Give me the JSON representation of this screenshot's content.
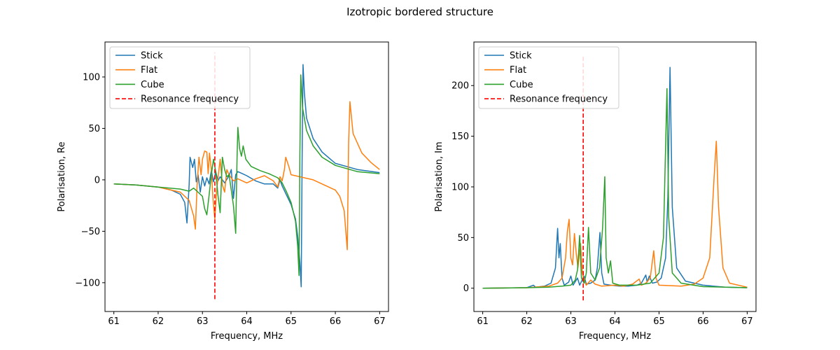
{
  "figure": {
    "title": "Izotropic bordered structure"
  },
  "chart_data": [
    {
      "type": "line",
      "xlabel": "Frequency, MHz",
      "ylabel": "Polarisation, Re",
      "xlim": [
        60.8,
        67.2
      ],
      "ylim": [
        -128,
        134
      ],
      "xticks": [
        61,
        62,
        63,
        64,
        65,
        66,
        67
      ],
      "yticks": [
        -100,
        -50,
        0,
        50,
        100
      ],
      "legend_position": "top-left",
      "legend": [
        "Stick",
        "Flat",
        "Cube",
        "Resonance frequency"
      ],
      "resonance": {
        "name": "Resonance frequency",
        "x": 63.28,
        "y_range": [
          -116,
          124
        ],
        "color": "#ff0000",
        "style": "dashed"
      },
      "series": [
        {
          "name": "Stick",
          "color": "#1f77b4",
          "points": [
            [
              61,
              -4
            ],
            [
              61.5,
              -5
            ],
            [
              62,
              -7
            ],
            [
              62.3,
              -10
            ],
            [
              62.5,
              -14
            ],
            [
              62.6,
              -22
            ],
            [
              62.65,
              -42
            ],
            [
              62.7,
              -5
            ],
            [
              62.72,
              22
            ],
            [
              62.78,
              12
            ],
            [
              62.82,
              20
            ],
            [
              62.86,
              -2
            ],
            [
              62.9,
              5
            ],
            [
              62.95,
              -12
            ],
            [
              63.0,
              3
            ],
            [
              63.05,
              -6
            ],
            [
              63.1,
              2
            ],
            [
              63.15,
              -4
            ],
            [
              63.2,
              9
            ],
            [
              63.25,
              -2
            ],
            [
              63.3,
              8
            ],
            [
              63.35,
              -1
            ],
            [
              63.4,
              3
            ],
            [
              63.5,
              -3
            ],
            [
              63.6,
              4
            ],
            [
              63.65,
              10
            ],
            [
              63.7,
              -18
            ],
            [
              63.75,
              5
            ],
            [
              63.8,
              8
            ],
            [
              63.9,
              6
            ],
            [
              64.0,
              4
            ],
            [
              64.2,
              -1
            ],
            [
              64.4,
              -4
            ],
            [
              64.6,
              -4
            ],
            [
              64.7,
              -8
            ],
            [
              64.75,
              0
            ],
            [
              64.8,
              -6
            ],
            [
              64.9,
              -15
            ],
            [
              65.0,
              -24
            ],
            [
              65.1,
              -38
            ],
            [
              65.15,
              -55
            ],
            [
              65.2,
              -80
            ],
            [
              65.23,
              -104
            ],
            [
              65.25,
              20
            ],
            [
              65.27,
              112
            ],
            [
              65.3,
              85
            ],
            [
              65.35,
              60
            ],
            [
              65.5,
              40
            ],
            [
              65.7,
              27
            ],
            [
              66.0,
              16
            ],
            [
              66.5,
              10
            ],
            [
              67,
              7
            ]
          ]
        },
        {
          "name": "Flat",
          "color": "#ff7f0e",
          "points": [
            [
              61,
              -4
            ],
            [
              61.5,
              -5
            ],
            [
              62,
              -7
            ],
            [
              62.3,
              -10
            ],
            [
              62.5,
              -12
            ],
            [
              62.7,
              -20
            ],
            [
              62.8,
              -35
            ],
            [
              62.84,
              -48
            ],
            [
              62.88,
              -5
            ],
            [
              62.92,
              22
            ],
            [
              62.97,
              5
            ],
            [
              63.0,
              20
            ],
            [
              63.05,
              28
            ],
            [
              63.1,
              27
            ],
            [
              63.13,
              6
            ],
            [
              63.16,
              26
            ],
            [
              63.2,
              10
            ],
            [
              63.24,
              -20
            ],
            [
              63.28,
              -38
            ],
            [
              63.32,
              -10
            ],
            [
              63.36,
              5
            ],
            [
              63.4,
              20
            ],
            [
              63.45,
              -5
            ],
            [
              63.5,
              -12
            ],
            [
              63.55,
              10
            ],
            [
              63.6,
              5
            ],
            [
              63.7,
              -1
            ],
            [
              63.8,
              1
            ],
            [
              64.0,
              -3
            ],
            [
              64.2,
              1
            ],
            [
              64.4,
              4
            ],
            [
              64.6,
              -1
            ],
            [
              64.7,
              -7
            ],
            [
              64.75,
              3
            ],
            [
              64.8,
              -1
            ],
            [
              64.85,
              10
            ],
            [
              64.88,
              22
            ],
            [
              64.95,
              13
            ],
            [
              65.0,
              5
            ],
            [
              65.5,
              0
            ],
            [
              66.0,
              -10
            ],
            [
              66.1,
              -16
            ],
            [
              66.2,
              -30
            ],
            [
              66.27,
              -68
            ],
            [
              66.3,
              35
            ],
            [
              66.33,
              76
            ],
            [
              66.4,
              45
            ],
            [
              66.6,
              26
            ],
            [
              66.8,
              17
            ],
            [
              67,
              10
            ]
          ]
        },
        {
          "name": "Cube",
          "color": "#2ca02c",
          "points": [
            [
              61,
              -4
            ],
            [
              61.5,
              -5
            ],
            [
              62,
              -7
            ],
            [
              62.5,
              -9
            ],
            [
              62.7,
              -11
            ],
            [
              62.8,
              -8
            ],
            [
              62.9,
              -12
            ],
            [
              63.0,
              -16
            ],
            [
              63.05,
              -28
            ],
            [
              63.1,
              -34
            ],
            [
              63.15,
              -15
            ],
            [
              63.2,
              5
            ],
            [
              63.25,
              20
            ],
            [
              63.3,
              8
            ],
            [
              63.35,
              -15
            ],
            [
              63.4,
              -32
            ],
            [
              63.45,
              22
            ],
            [
              63.5,
              10
            ],
            [
              63.55,
              3
            ],
            [
              63.6,
              5
            ],
            [
              63.65,
              -10
            ],
            [
              63.7,
              -25
            ],
            [
              63.75,
              -52
            ],
            [
              63.78,
              20
            ],
            [
              63.8,
              51
            ],
            [
              63.84,
              30
            ],
            [
              63.88,
              23
            ],
            [
              63.92,
              33
            ],
            [
              63.98,
              20
            ],
            [
              64.1,
              13
            ],
            [
              64.3,
              9
            ],
            [
              64.5,
              6
            ],
            [
              64.7,
              2
            ],
            [
              64.8,
              -3
            ],
            [
              64.9,
              -12
            ],
            [
              65.0,
              -22
            ],
            [
              65.1,
              -40
            ],
            [
              65.15,
              -65
            ],
            [
              65.18,
              -93
            ],
            [
              65.2,
              25
            ],
            [
              65.22,
              102
            ],
            [
              65.26,
              70
            ],
            [
              65.35,
              48
            ],
            [
              65.5,
              33
            ],
            [
              65.7,
              22
            ],
            [
              66.0,
              14
            ],
            [
              66.5,
              8
            ],
            [
              67,
              6
            ]
          ]
        }
      ]
    },
    {
      "type": "line",
      "xlabel": "Frequency, MHz",
      "ylabel": "Polarisation, Im",
      "xlim": [
        60.8,
        67.2
      ],
      "ylim": [
        -23,
        243
      ],
      "xticks": [
        61,
        62,
        63,
        64,
        65,
        66,
        67
      ],
      "yticks": [
        0,
        50,
        100,
        150,
        200
      ],
      "legend_position": "top-left",
      "legend": [
        "Stick",
        "Flat",
        "Cube",
        "Resonance frequency"
      ],
      "resonance": {
        "name": "Resonance frequency",
        "x": 63.28,
        "y_range": [
          -12,
          230
        ],
        "color": "#ff0000",
        "style": "dashed"
      },
      "series": [
        {
          "name": "Stick",
          "color": "#1f77b4",
          "points": [
            [
              61,
              0
            ],
            [
              62,
              0.5
            ],
            [
              62.15,
              3
            ],
            [
              62.2,
              1
            ],
            [
              62.4,
              2
            ],
            [
              62.55,
              5
            ],
            [
              62.65,
              20
            ],
            [
              62.7,
              59
            ],
            [
              62.73,
              30
            ],
            [
              62.76,
              44
            ],
            [
              62.8,
              10
            ],
            [
              62.85,
              3
            ],
            [
              62.95,
              6
            ],
            [
              63.0,
              12
            ],
            [
              63.05,
              3
            ],
            [
              63.15,
              10
            ],
            [
              63.2,
              3
            ],
            [
              63.3,
              12
            ],
            [
              63.35,
              4
            ],
            [
              63.45,
              5
            ],
            [
              63.55,
              8
            ],
            [
              63.6,
              20
            ],
            [
              63.66,
              55
            ],
            [
              63.7,
              15
            ],
            [
              63.75,
              4
            ],
            [
              63.9,
              3
            ],
            [
              64.1,
              2
            ],
            [
              64.3,
              2
            ],
            [
              64.5,
              3
            ],
            [
              64.6,
              5
            ],
            [
              64.7,
              13
            ],
            [
              64.73,
              6
            ],
            [
              64.78,
              12
            ],
            [
              64.85,
              5
            ],
            [
              64.95,
              6
            ],
            [
              65.05,
              10
            ],
            [
              65.15,
              30
            ],
            [
              65.2,
              90
            ],
            [
              65.25,
              218
            ],
            [
              65.3,
              80
            ],
            [
              65.4,
              20
            ],
            [
              65.6,
              7
            ],
            [
              66.0,
              3
            ],
            [
              66.5,
              1
            ],
            [
              67,
              0.5
            ]
          ]
        },
        {
          "name": "Flat",
          "color": "#ff7f0e",
          "points": [
            [
              61,
              0
            ],
            [
              62,
              0.5
            ],
            [
              62.5,
              2
            ],
            [
              62.7,
              5
            ],
            [
              62.8,
              10
            ],
            [
              62.88,
              30
            ],
            [
              62.92,
              56
            ],
            [
              62.96,
              68
            ],
            [
              63.0,
              30
            ],
            [
              63.04,
              23
            ],
            [
              63.08,
              54
            ],
            [
              63.12,
              35
            ],
            [
              63.16,
              20
            ],
            [
              63.22,
              44
            ],
            [
              63.26,
              15
            ],
            [
              63.3,
              8
            ],
            [
              63.35,
              3
            ],
            [
              63.45,
              8
            ],
            [
              63.55,
              4
            ],
            [
              63.7,
              2
            ],
            [
              64.0,
              3
            ],
            [
              64.2,
              2
            ],
            [
              64.4,
              4
            ],
            [
              64.55,
              9
            ],
            [
              64.6,
              3
            ],
            [
              64.7,
              5
            ],
            [
              64.8,
              10
            ],
            [
              64.88,
              37
            ],
            [
              64.93,
              10
            ],
            [
              65.0,
              3
            ],
            [
              65.5,
              2
            ],
            [
              65.8,
              4
            ],
            [
              66.0,
              10
            ],
            [
              66.15,
              30
            ],
            [
              66.25,
              110
            ],
            [
              66.3,
              145
            ],
            [
              66.35,
              80
            ],
            [
              66.45,
              20
            ],
            [
              66.6,
              5
            ],
            [
              67,
              1
            ]
          ]
        },
        {
          "name": "Cube",
          "color": "#2ca02c",
          "points": [
            [
              61,
              0
            ],
            [
              62,
              0.5
            ],
            [
              62.5,
              1
            ],
            [
              62.8,
              2
            ],
            [
              63.0,
              3
            ],
            [
              63.1,
              8
            ],
            [
              63.15,
              18
            ],
            [
              63.2,
              52
            ],
            [
              63.24,
              10
            ],
            [
              63.3,
              5
            ],
            [
              63.35,
              15
            ],
            [
              63.4,
              60
            ],
            [
              63.45,
              15
            ],
            [
              63.55,
              8
            ],
            [
              63.65,
              20
            ],
            [
              63.72,
              60
            ],
            [
              63.77,
              110
            ],
            [
              63.8,
              30
            ],
            [
              63.85,
              15
            ],
            [
              63.9,
              27
            ],
            [
              63.95,
              5
            ],
            [
              64.1,
              3
            ],
            [
              64.5,
              3
            ],
            [
              64.8,
              5
            ],
            [
              65.0,
              15
            ],
            [
              65.1,
              50
            ],
            [
              65.18,
              197
            ],
            [
              65.22,
              70
            ],
            [
              65.3,
              15
            ],
            [
              65.5,
              5
            ],
            [
              66.0,
              1.5
            ],
            [
              67,
              0.5
            ]
          ]
        }
      ]
    }
  ]
}
